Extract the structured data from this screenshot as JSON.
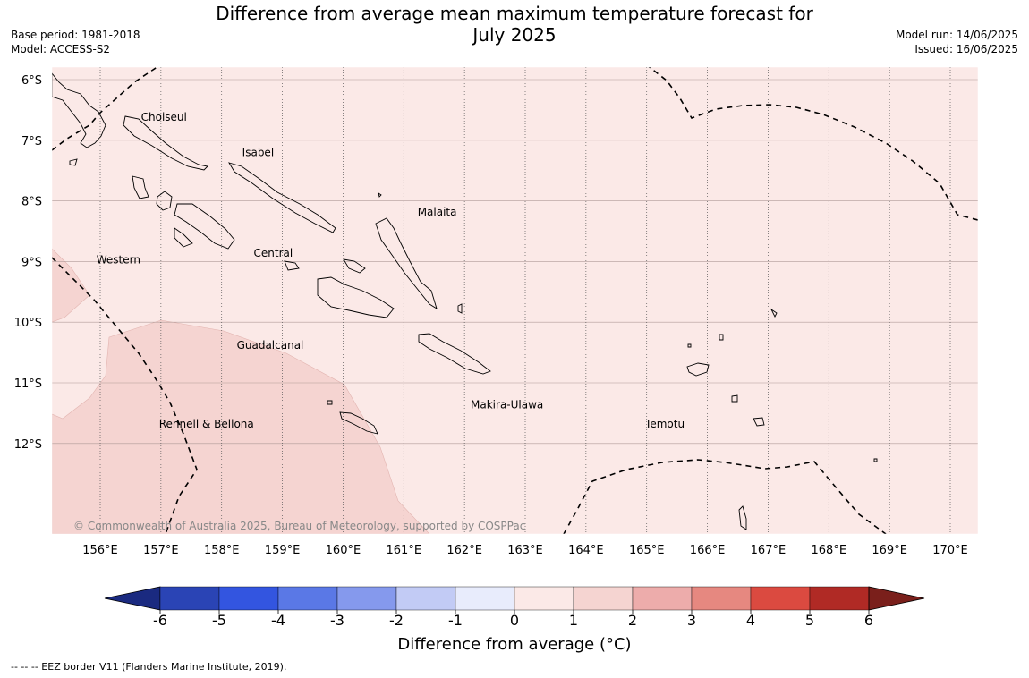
{
  "title_line1": "Difference from average mean maximum temperature forecast for",
  "title_line2": "July 2025",
  "base_period": "Base period: 1981-2018",
  "model": "Model: ACCESS-S2",
  "model_run": "Model run: 14/06/2025",
  "issued": "Issued: 16/06/2025",
  "copyright": "© Commonwealth of Australia 2025, Bureau of Meteorology, supported by COSPPac",
  "footnote": "--  --  -- EEZ border V11 (Flanders Marine Institute, 2019).",
  "colorbar": {
    "label": "Difference from average (°C)",
    "ticks": [
      "-6",
      "-5",
      "-4",
      "-3",
      "-2",
      "-1",
      "0",
      "1",
      "2",
      "3",
      "4",
      "5",
      "6"
    ],
    "colors": [
      "#1a2a80",
      "#2a44b5",
      "#3355e0",
      "#5a78e6",
      "#8599ed",
      "#c2cbf5",
      "#e8ecfc",
      "#fbe9e7",
      "#f5d4d1",
      "#edacab",
      "#e68880",
      "#db4a40",
      "#b02a25",
      "#7a1f1b"
    ]
  },
  "map": {
    "lat_labels": [
      "6°S",
      "7°S",
      "8°S",
      "9°S",
      "10°S",
      "11°S",
      "12°S"
    ],
    "lon_labels": [
      "156°E",
      "157°E",
      "158°E",
      "159°E",
      "160°E",
      "161°E",
      "162°E",
      "163°E",
      "164°E",
      "165°E",
      "166°E",
      "167°E",
      "168°E",
      "169°E",
      "170°E"
    ],
    "anomaly_fill": "#fbe9e7",
    "anomaly_fill_high": "#f5d4d1",
    "provinces": [
      {
        "name": "Choiseul",
        "lon": 157.05,
        "lat": -6.62
      },
      {
        "name": "Isabel",
        "lon": 158.6,
        "lat": -7.2
      },
      {
        "name": "Malaita",
        "lon": 161.55,
        "lat": -8.18
      },
      {
        "name": "Western",
        "lon": 156.3,
        "lat": -8.97
      },
      {
        "name": "Central",
        "lon": 158.85,
        "lat": -8.86
      },
      {
        "name": "Guadalcanal",
        "lon": 158.8,
        "lat": -10.38
      },
      {
        "name": "Makira-Ulawa",
        "lon": 162.7,
        "lat": -11.36
      },
      {
        "name": "Rennell & Bellona",
        "lon": 157.75,
        "lat": -11.68
      },
      {
        "name": "Temotu",
        "lon": 165.3,
        "lat": -11.68
      }
    ]
  }
}
